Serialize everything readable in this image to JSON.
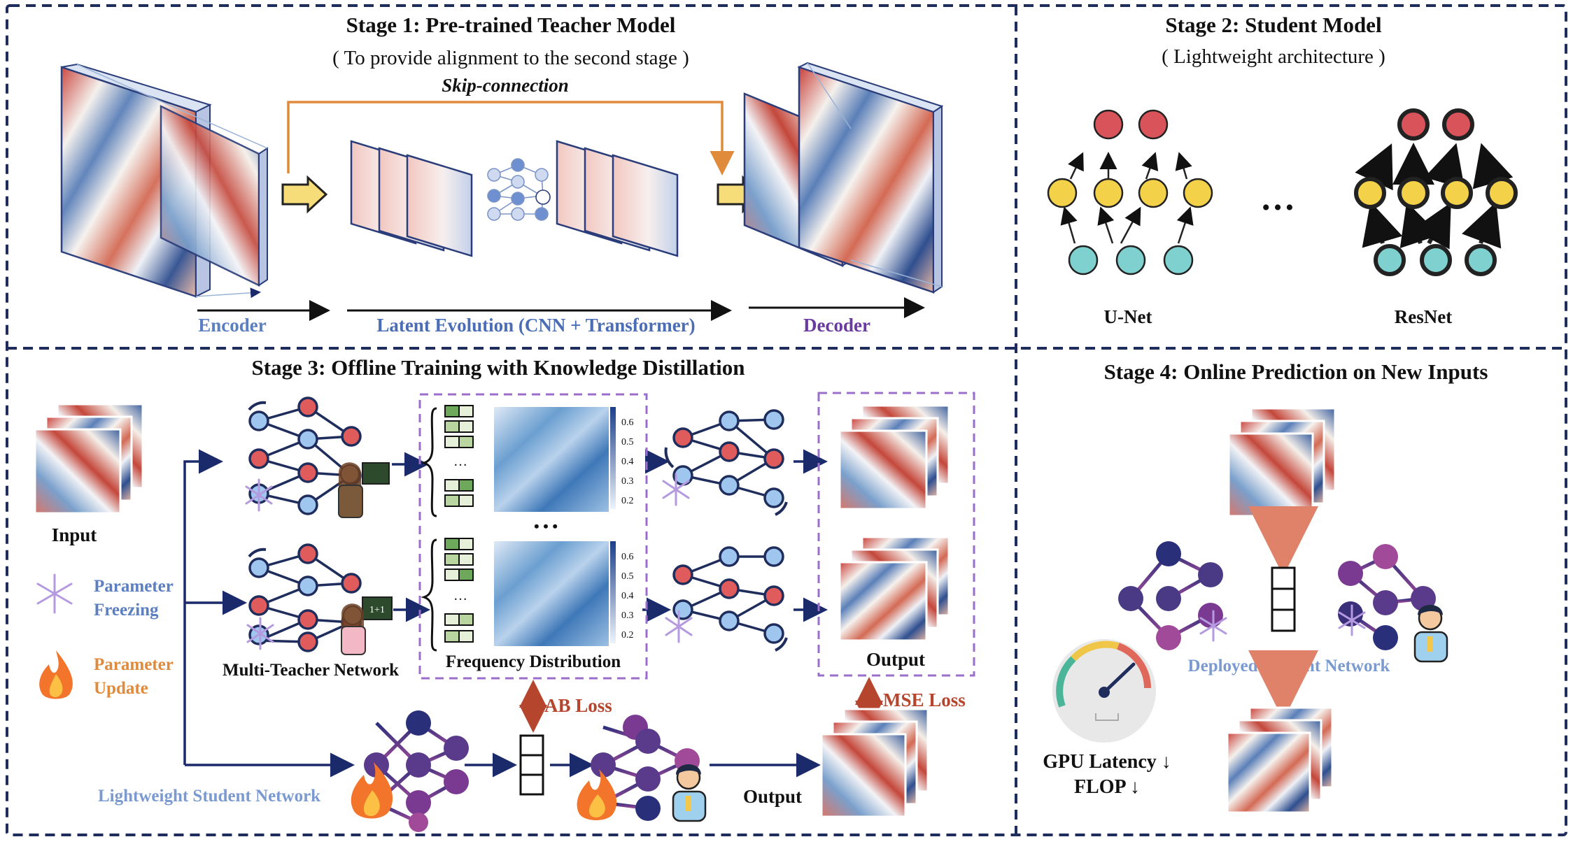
{
  "stage1": {
    "title": "Stage 1: Pre-trained Teacher Model",
    "subtitle": "( To provide alignment to the second stage )",
    "skip": "Skip-connection",
    "encoder": "Encoder",
    "latent": "Latent Evolution (CNN + Transformer)",
    "decoder": "Decoder"
  },
  "stage2": {
    "title": "Stage 2: Student Model",
    "subtitle": "( Lightweight architecture )",
    "unet": "U-Net",
    "ellipsis": "…",
    "resnet": "ResNet"
  },
  "stage3": {
    "title": "Stage 3: Offline Training with Knowledge Distillation",
    "input": "Input",
    "freezing1": "Parameter",
    "freezing2": "Freezing",
    "update1": "Parameter",
    "update2": "Update",
    "multi_teacher": "Multi-Teacher Network",
    "freq_dist": "Frequency Distribution",
    "output_top": "Output",
    "ab_loss": "AB Loss",
    "mse_loss": "MSE Loss",
    "lightweight": "Lightweight Student Network",
    "output_bottom": "Output",
    "dots": "• • •",
    "vdots": "…",
    "scale_ticks": [
      "0.6",
      "0.5",
      "0.4",
      "0.3",
      "0.2"
    ],
    "board_text": "1+1"
  },
  "stage4": {
    "title": "Stage 4: Online Prediction on New Inputs",
    "deployed": "Deployed Student Network",
    "gpu": "GPU Latency ↓",
    "flop": "FLOP ↓"
  },
  "colors": {
    "border": "#1f2d5c",
    "blue_label": "#5b7fc0",
    "purple_label": "#6a3aa0",
    "orange": "#e08a3c",
    "navy": "#1b2a6b",
    "red_arrow": "#b5452c",
    "dashed_purple": "#9b6fc9"
  }
}
